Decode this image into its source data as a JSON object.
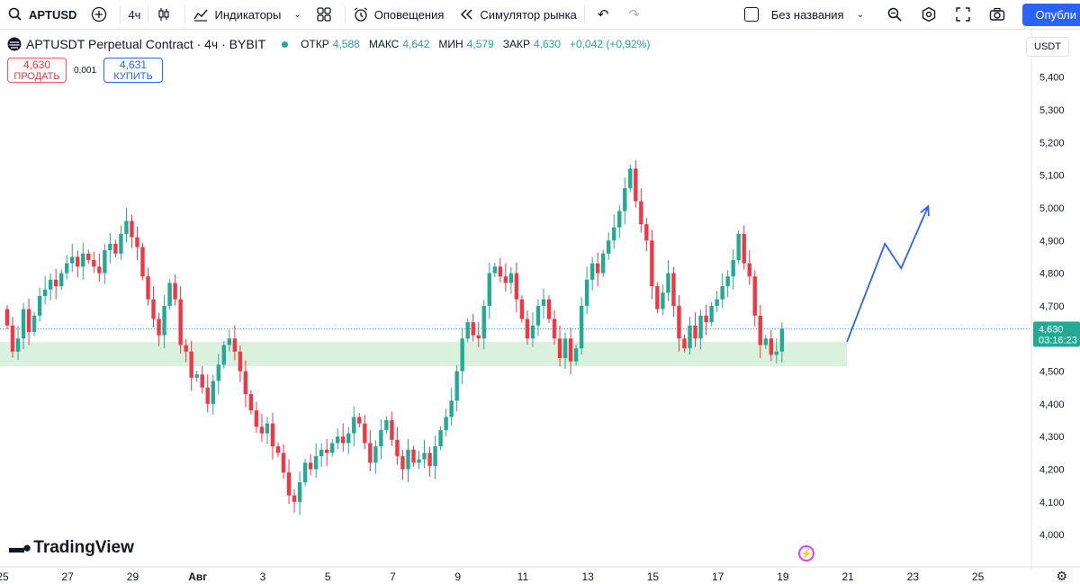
{
  "toolbar": {
    "symbol": "APTUSD",
    "interval": "4ч",
    "indicators": "Индикаторы",
    "alerts": "Оповещения",
    "replay": "Симулятор рынка",
    "layout_name": "Без названия",
    "publish": "Опубли"
  },
  "legend": {
    "title": "APTUSDT Perpetual Contract · 4ч · BYBIT",
    "open_label": "ОТКР",
    "open": "4,588",
    "high_label": "МАКС",
    "high": "4,642",
    "low_label": "МИН",
    "low": "4,579",
    "close_label": "ЗАКР",
    "close": "4,630",
    "change": "+0,042 (+0,92%)"
  },
  "trade": {
    "sell_price": "4,630",
    "sell_label": "ПРОДАТЬ",
    "spread": "0,001",
    "buy_price": "4,631",
    "buy_label": "КУПИТЬ"
  },
  "currency": "USDT",
  "brand": "TradingView",
  "colors": {
    "up": "#22ab94",
    "down": "#f23645",
    "zone": "#d6efd9",
    "arrow": "#2962ff"
  },
  "chart_data": {
    "type": "candlestick",
    "title": "APTUSDT Perpetual Contract · 4ч · BYBIT",
    "ylim": [
      3.915,
      5.545
    ],
    "y_ticks": [
      4.0,
      4.1,
      4.2,
      4.3,
      4.4,
      4.5,
      4.6,
      4.7,
      4.8,
      4.9,
      5.0,
      5.1,
      5.2,
      5.3,
      5.4
    ],
    "y_tick_labels": [
      "4,000",
      "4,100",
      "4,200",
      "4,300",
      "4,400",
      "4,500",
      "4,600",
      "4,700",
      "4,800",
      "4,900",
      "5,000",
      "5,100",
      "5,200",
      "5,300",
      "5,400"
    ],
    "x_ticks": [
      {
        "label": "25",
        "bar": 0
      },
      {
        "label": "27",
        "bar": 12
      },
      {
        "label": "29",
        "bar": 24
      },
      {
        "label": "Авг",
        "bar": 36
      },
      {
        "label": "3",
        "bar": 48
      },
      {
        "label": "5",
        "bar": 60
      },
      {
        "label": "7",
        "bar": 72
      },
      {
        "label": "9",
        "bar": 84
      },
      {
        "label": "11",
        "bar": 96
      },
      {
        "label": "13",
        "bar": 108
      },
      {
        "label": "15",
        "bar": 120
      },
      {
        "label": "17",
        "bar": 132
      },
      {
        "label": "19",
        "bar": 144
      },
      {
        "label": "21",
        "bar": 156
      },
      {
        "label": "23",
        "bar": 168
      },
      {
        "label": "25",
        "bar": 180
      }
    ],
    "last_price": "4,630",
    "last_price_value": 4.63,
    "countdown": "03:16:23",
    "support_zone": {
      "low": 4.515,
      "high": 4.59,
      "from_bar": 0,
      "to_bar": 155
    },
    "projection_path": [
      {
        "bar": 155,
        "price": 4.59
      },
      {
        "bar": 162,
        "price": 4.89
      },
      {
        "bar": 165,
        "price": 4.815
      },
      {
        "bar": 170,
        "price": 5.005
      }
    ],
    "closes": [
      4.64,
      4.56,
      4.6,
      4.69,
      4.62,
      4.67,
      4.73,
      4.75,
      4.78,
      4.76,
      4.8,
      4.83,
      4.85,
      4.82,
      4.86,
      4.84,
      4.82,
      4.8,
      4.87,
      4.89,
      4.86,
      4.92,
      4.96,
      4.91,
      4.88,
      4.79,
      4.72,
      4.66,
      4.61,
      4.7,
      4.77,
      4.72,
      4.58,
      4.56,
      4.48,
      4.49,
      4.45,
      4.4,
      4.47,
      4.52,
      4.58,
      4.6,
      4.56,
      4.5,
      4.43,
      4.38,
      4.33,
      4.31,
      4.34,
      4.27,
      4.25,
      4.19,
      4.12,
      4.1,
      4.16,
      4.22,
      4.2,
      4.24,
      4.26,
      4.25,
      4.28,
      4.3,
      4.28,
      4.31,
      4.36,
      4.34,
      4.28,
      4.22,
      4.27,
      4.32,
      4.35,
      4.29,
      4.24,
      4.2,
      4.26,
      4.22,
      4.23,
      4.25,
      4.21,
      4.27,
      4.32,
      4.36,
      4.41,
      4.5,
      4.6,
      4.65,
      4.61,
      4.6,
      4.7,
      4.8,
      4.82,
      4.79,
      4.77,
      4.8,
      4.72,
      4.66,
      4.6,
      4.64,
      4.7,
      4.72,
      4.66,
      4.6,
      4.54,
      4.6,
      4.53,
      4.57,
      4.7,
      4.78,
      4.83,
      4.8,
      4.86,
      4.9,
      4.94,
      4.99,
      5.06,
      5.12,
      5.02,
      4.95,
      4.9,
      4.76,
      4.69,
      4.74,
      4.8,
      4.7,
      4.6,
      4.57,
      4.64,
      4.6,
      4.67,
      4.65,
      4.7,
      4.72,
      4.76,
      4.79,
      4.84,
      4.92,
      4.83,
      4.79,
      4.67,
      4.58,
      4.6,
      4.55,
      4.56,
      4.63
    ]
  }
}
